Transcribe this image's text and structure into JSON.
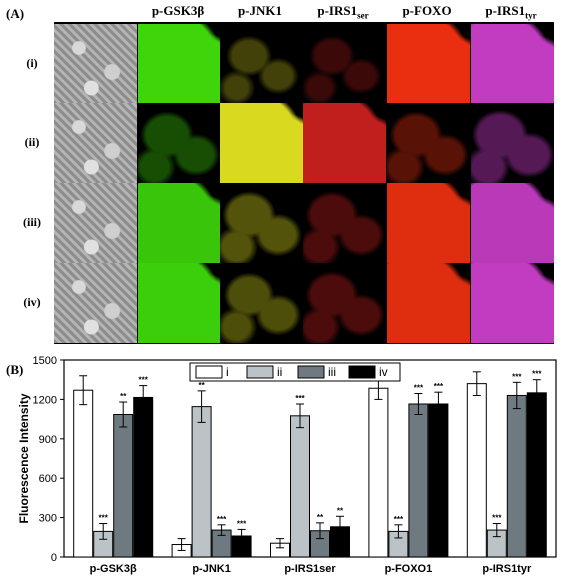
{
  "panel_a": {
    "label": "(A)",
    "columns": [
      "p-GSK3β",
      "p-JNK1",
      "p-IRS1ser",
      "p-FOXO",
      "p-IRS1tyr"
    ],
    "column_subscripts": [
      "",
      "",
      "ser",
      "",
      "tyr"
    ],
    "column_bases": [
      "p-GSK3β",
      "p-JNK1",
      "p-IRS1",
      "p-FOXO",
      "p-IRS1"
    ],
    "rows": [
      "(i)",
      "(ii)",
      "(iii)",
      "(iv)"
    ],
    "channel_colors": [
      "#3dd40a",
      "#e0e020",
      "#d02020",
      "#f03010",
      "#d040d0"
    ],
    "signal_level": [
      [
        0.95,
        0.05,
        0.05,
        0.9,
        0.85
      ],
      [
        0.15,
        0.9,
        0.85,
        0.15,
        0.2
      ],
      [
        0.85,
        0.15,
        0.15,
        0.85,
        0.8
      ],
      [
        0.9,
        0.12,
        0.15,
        0.85,
        0.85
      ]
    ]
  },
  "chart_data": {
    "type": "bar",
    "panel_label": "(B)",
    "categories": [
      "p-GSK3β",
      "p-JNK1",
      "p-IRS1ser",
      "p-FOXO1",
      "p-IRS1tyr"
    ],
    "series": [
      {
        "name": "i",
        "color": "#ffffff",
        "values": [
          1270,
          95,
          105,
          1285,
          1320
        ],
        "errors": [
          110,
          45,
          35,
          85,
          90
        ],
        "sig": [
          "",
          "",
          "",
          "",
          ""
        ]
      },
      {
        "name": "ii",
        "color": "#bcc3c7",
        "values": [
          195,
          1145,
          1075,
          195,
          205
        ],
        "errors": [
          60,
          120,
          90,
          50,
          50
        ],
        "sig": [
          "***",
          "**",
          "***",
          "***",
          "***"
        ]
      },
      {
        "name": "iii",
        "color": "#6f7a80",
        "values": [
          1085,
          205,
          200,
          1165,
          1230
        ],
        "errors": [
          95,
          40,
          60,
          80,
          100
        ],
        "sig": [
          "**",
          "***",
          "**",
          "***",
          "***"
        ]
      },
      {
        "name": "iv",
        "color": "#000000",
        "values": [
          1215,
          160,
          230,
          1165,
          1250
        ],
        "errors": [
          90,
          50,
          80,
          90,
          100
        ],
        "sig": [
          "***",
          "***",
          "**",
          "***",
          "***"
        ]
      }
    ],
    "ylabel": "Fluorescence Intensity",
    "xlabel": "",
    "ylim": [
      0,
      1500
    ],
    "yticks": [
      0,
      300,
      600,
      900,
      1200,
      1500
    ],
    "legend_position": "top-center",
    "grid": false
  }
}
